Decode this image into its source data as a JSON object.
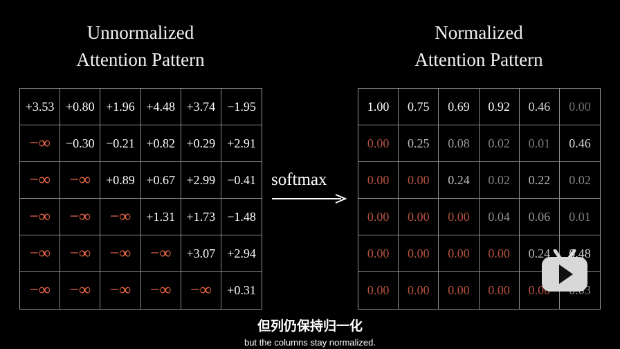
{
  "left_title": [
    "Unnormalized",
    "Attention Pattern"
  ],
  "right_title": [
    "Normalized",
    "Attention Pattern"
  ],
  "operation_label": "softmax",
  "unnormalized": [
    [
      "+3.53",
      "+0.80",
      "+1.96",
      "+4.48",
      "+3.74",
      "−1.95"
    ],
    [
      "−∞",
      "−0.30",
      "−0.21",
      "+0.82",
      "+0.29",
      "+2.91"
    ],
    [
      "−∞",
      "−∞",
      "+0.89",
      "+0.67",
      "+2.99",
      "−0.41"
    ],
    [
      "−∞",
      "−∞",
      "−∞",
      "+1.31",
      "+1.73",
      "−1.48"
    ],
    [
      "−∞",
      "−∞",
      "−∞",
      "−∞",
      "+3.07",
      "+2.94"
    ],
    [
      "−∞",
      "−∞",
      "−∞",
      "−∞",
      "−∞",
      "+0.31"
    ]
  ],
  "normalized": [
    [
      "1.00",
      "0.75",
      "0.69",
      "0.92",
      "0.46",
      "0.00"
    ],
    [
      "0.00",
      "0.25",
      "0.08",
      "0.02",
      "0.01",
      "0.46"
    ],
    [
      "0.00",
      "0.00",
      "0.24",
      "0.02",
      "0.22",
      "0.02"
    ],
    [
      "0.00",
      "0.00",
      "0.00",
      "0.04",
      "0.06",
      "0.01"
    ],
    [
      "0.00",
      "0.00",
      "0.00",
      "0.00",
      "0.24",
      "0.48"
    ],
    [
      "0.00",
      "0.00",
      "0.00",
      "0.00",
      "0.00",
      "0.03"
    ]
  ],
  "colors": {
    "masked": "#f26a4b",
    "masked_zero": "#b5533e",
    "text": "#ffffff"
  },
  "subtitle_zh": "但列仍保持归一化",
  "subtitle_en": "but the columns stay normalized.",
  "overlay_icon": "play-tv-icon"
}
